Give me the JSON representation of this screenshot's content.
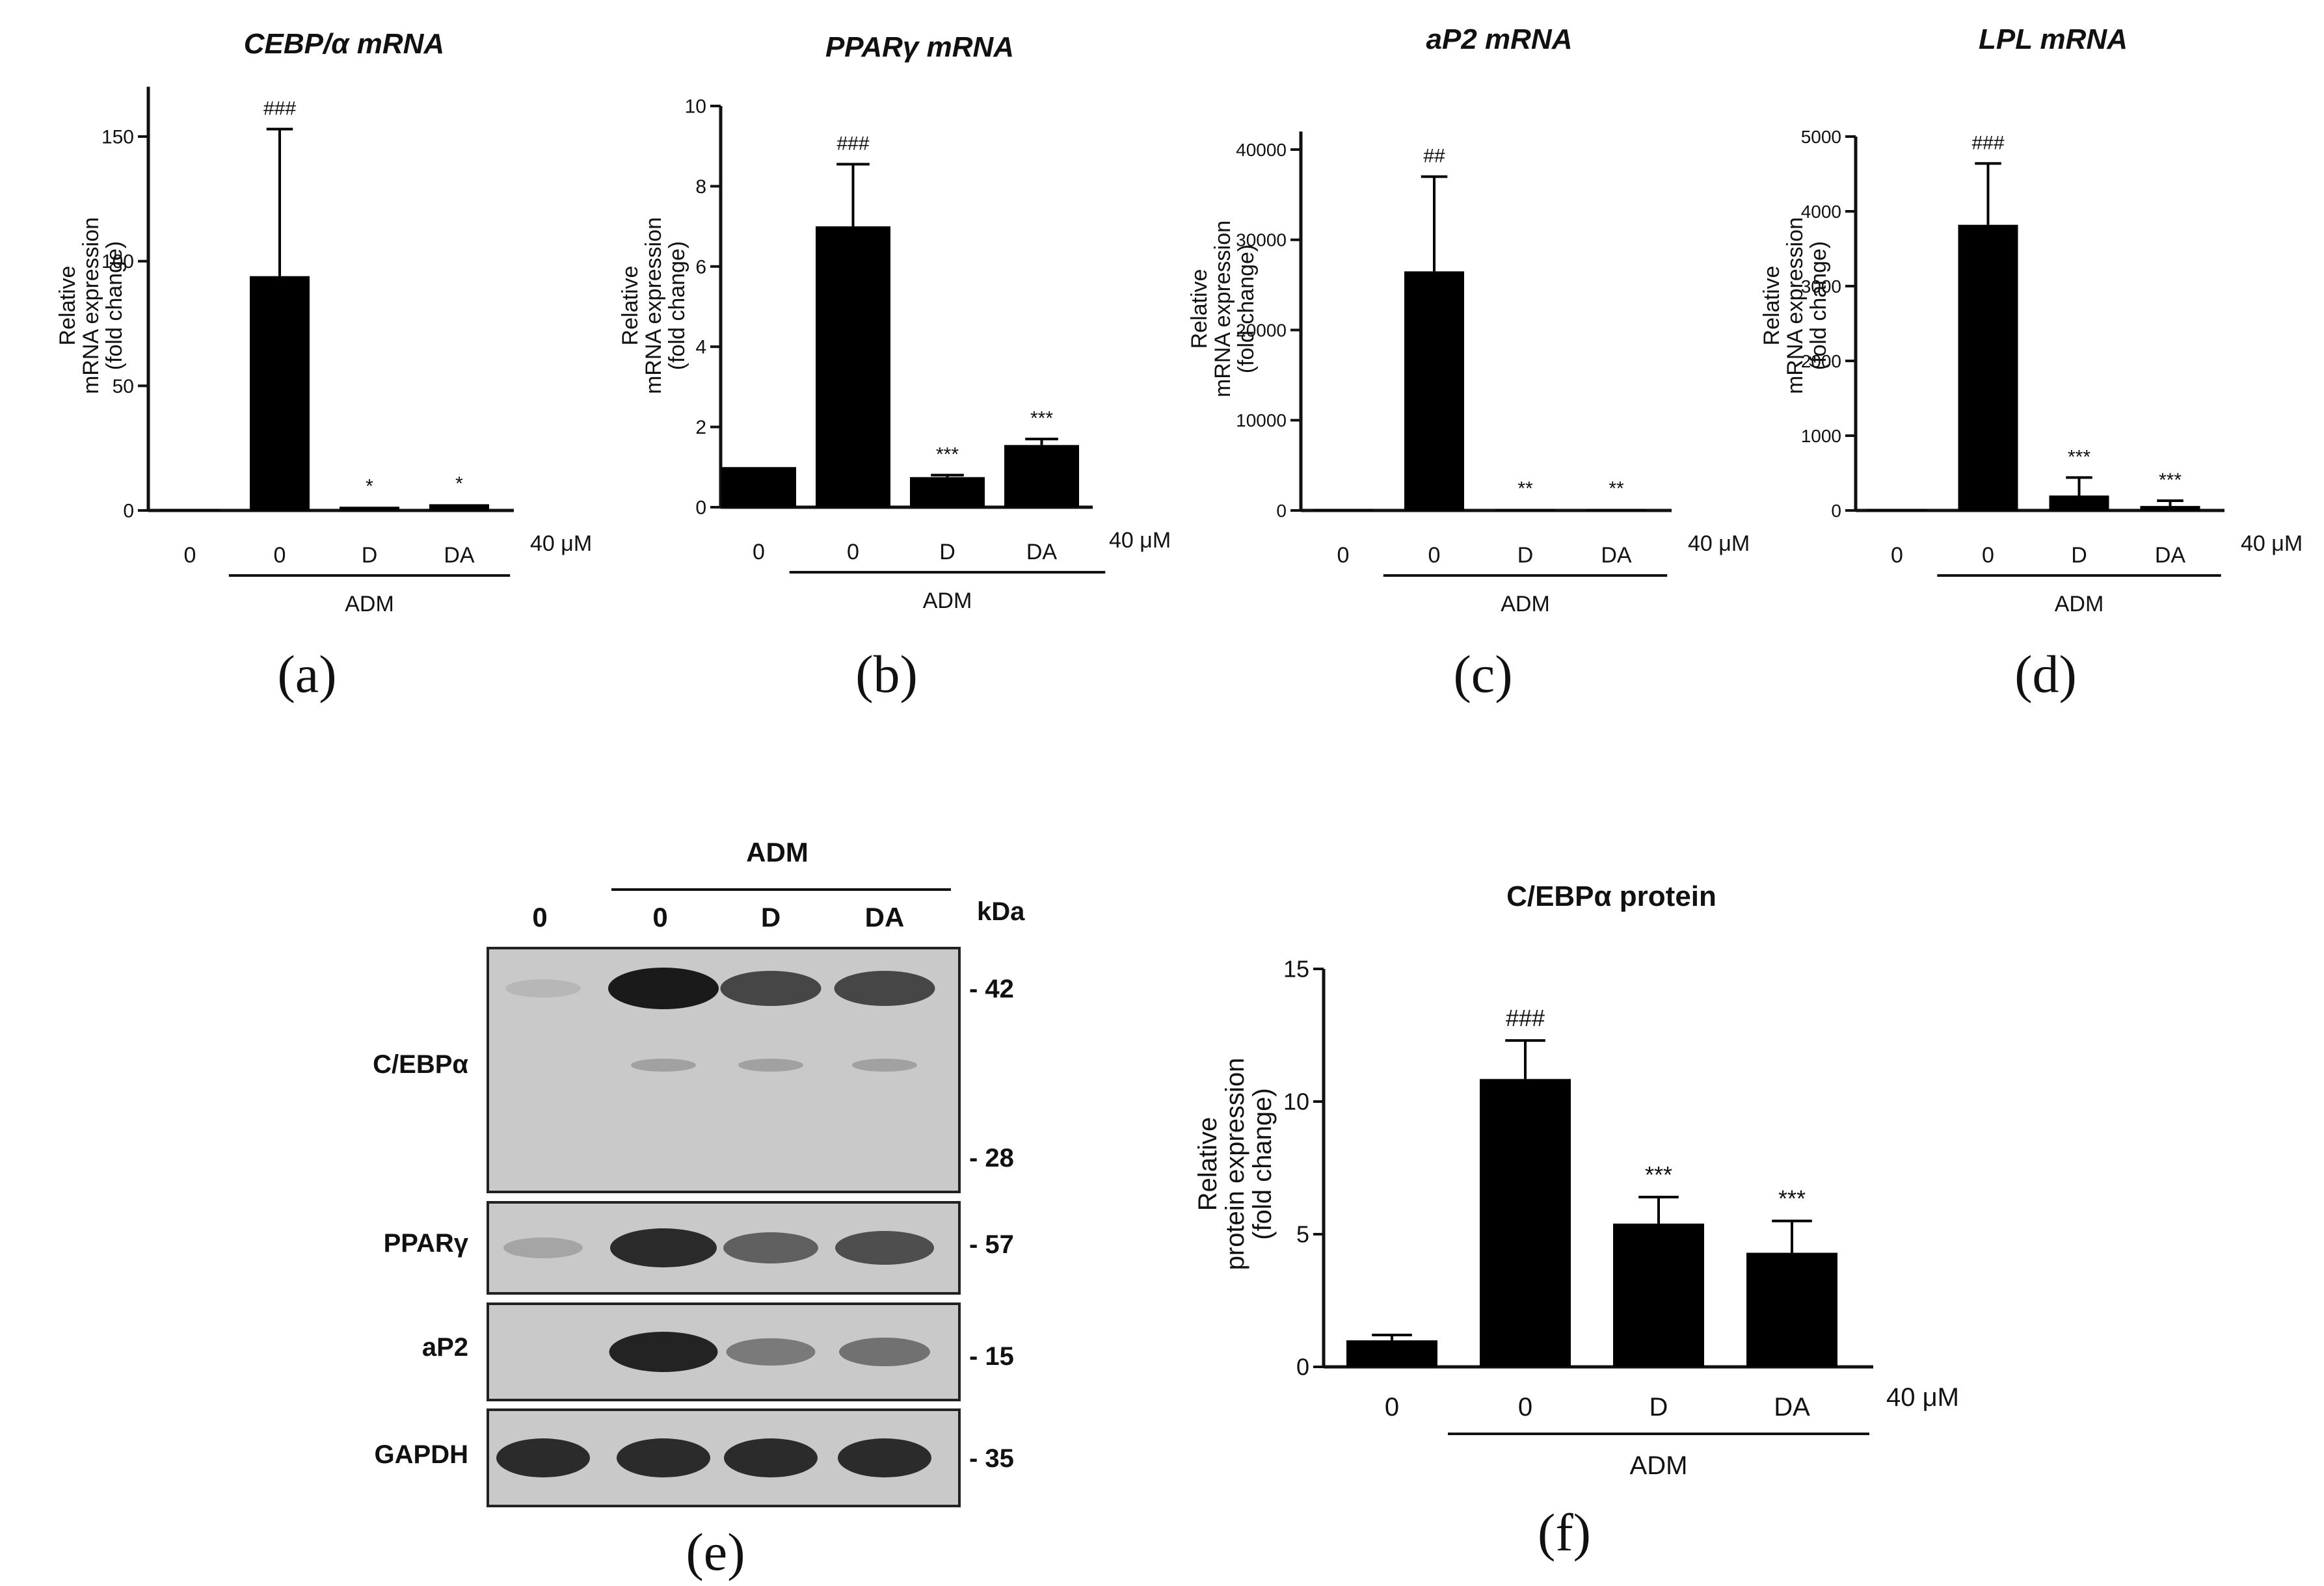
{
  "figure": {
    "panels": [
      "(a)",
      "(b)",
      "(c)",
      "(d)",
      "(e)",
      "(f)"
    ]
  },
  "colors": {
    "bar": "#000000",
    "axis": "#111111",
    "blot_bg": "#c9c9c9"
  },
  "common": {
    "y_label_lines": [
      "Relative",
      "mRNA expression",
      "(fold change)"
    ],
    "concentration": "40 μM",
    "group_label": "ADM"
  },
  "chart_data": [
    {
      "type": "bar",
      "title": "CEBP/α mRNA",
      "categories": [
        "0",
        "0",
        "D",
        "DA"
      ],
      "values": [
        0.4,
        94,
        1.5,
        2.5
      ],
      "errors": [
        0,
        59,
        0,
        0
      ],
      "annotations": [
        "",
        "###",
        "*",
        "*"
      ],
      "ylabel": [
        "Relative",
        "mRNA expression",
        "(fold change)"
      ],
      "yticks": [
        0,
        50,
        100,
        150
      ],
      "ylim": [
        0,
        170
      ],
      "group_label": "ADM",
      "concentration": "40 μM"
    },
    {
      "type": "bar",
      "title": "PPARγ mRNA",
      "categories": [
        "0",
        "0",
        "D",
        "DA"
      ],
      "values": [
        1.0,
        7.0,
        0.75,
        1.55
      ],
      "errors": [
        0,
        1.55,
        0.05,
        0.15
      ],
      "annotations": [
        "",
        "###",
        "***",
        "***"
      ],
      "ylabel": [
        "Relative",
        "mRNA expression",
        "(fold change)"
      ],
      "yticks": [
        0,
        2,
        4,
        6,
        8,
        10
      ],
      "ylim": [
        0,
        10
      ],
      "group_label": "ADM",
      "concentration": "40 μM"
    },
    {
      "type": "bar",
      "title": "aP2 mRNA",
      "categories": [
        "0",
        "0",
        "D",
        "DA"
      ],
      "values": [
        0,
        26500,
        150,
        150
      ],
      "errors": [
        0,
        10500,
        0,
        0
      ],
      "annotations": [
        "",
        "##",
        "**",
        "**"
      ],
      "ylabel": [
        "Relative",
        "mRNA expression",
        "(fold change)"
      ],
      "yticks": [
        0,
        10000,
        20000,
        30000,
        40000
      ],
      "ylim": [
        0,
        42000
      ],
      "group_label": "ADM",
      "concentration": "40 μM"
    },
    {
      "type": "bar",
      "title": "LPL mRNA",
      "categories": [
        "0",
        "0",
        "D",
        "DA"
      ],
      "values": [
        5,
        3820,
        200,
        60
      ],
      "errors": [
        0,
        820,
        240,
        70
      ],
      "annotations": [
        "",
        "###",
        "***",
        "***"
      ],
      "ylabel": [
        "Relative",
        "mRNA expression",
        "(fold change)"
      ],
      "yticks": [
        0,
        1000,
        2000,
        3000,
        4000,
        5000
      ],
      "ylim": [
        0,
        5000
      ],
      "group_label": "ADM",
      "concentration": "40 μM"
    },
    {
      "type": "bar",
      "title": "C/EBPα protein",
      "categories": [
        "0",
        "0",
        "D",
        "DA"
      ],
      "values": [
        1.0,
        10.85,
        5.4,
        4.3
      ],
      "errors": [
        0.2,
        1.45,
        1.0,
        1.2
      ],
      "annotations": [
        "",
        "###",
        "***",
        "***"
      ],
      "ylabel": [
        "Relative",
        "protein expression",
        "(fold change)"
      ],
      "yticks": [
        0,
        5,
        10,
        15
      ],
      "ylim": [
        0,
        15
      ],
      "group_label": "ADM",
      "concentration": "40 μM"
    }
  ],
  "western_blot": {
    "group_label": "ADM",
    "lanes": [
      "0",
      "0",
      "D",
      "DA"
    ],
    "kda_label": "kDa",
    "rows": [
      {
        "name": "C/EBPα",
        "markers": [
          "- 42",
          "- 28"
        ],
        "band_intensity": [
          0.1,
          1.0,
          0.75,
          0.75
        ]
      },
      {
        "name": "PPARγ",
        "markers": [
          "- 57"
        ],
        "band_intensity": [
          0.2,
          0.9,
          0.6,
          0.7
        ]
      },
      {
        "name": "aP2",
        "markers": [
          "- 15"
        ],
        "band_intensity": [
          0.0,
          0.95,
          0.45,
          0.5
        ]
      },
      {
        "name": "GAPDH",
        "markers": [
          "- 35"
        ],
        "band_intensity": [
          0.9,
          0.9,
          0.9,
          0.9
        ]
      }
    ]
  }
}
